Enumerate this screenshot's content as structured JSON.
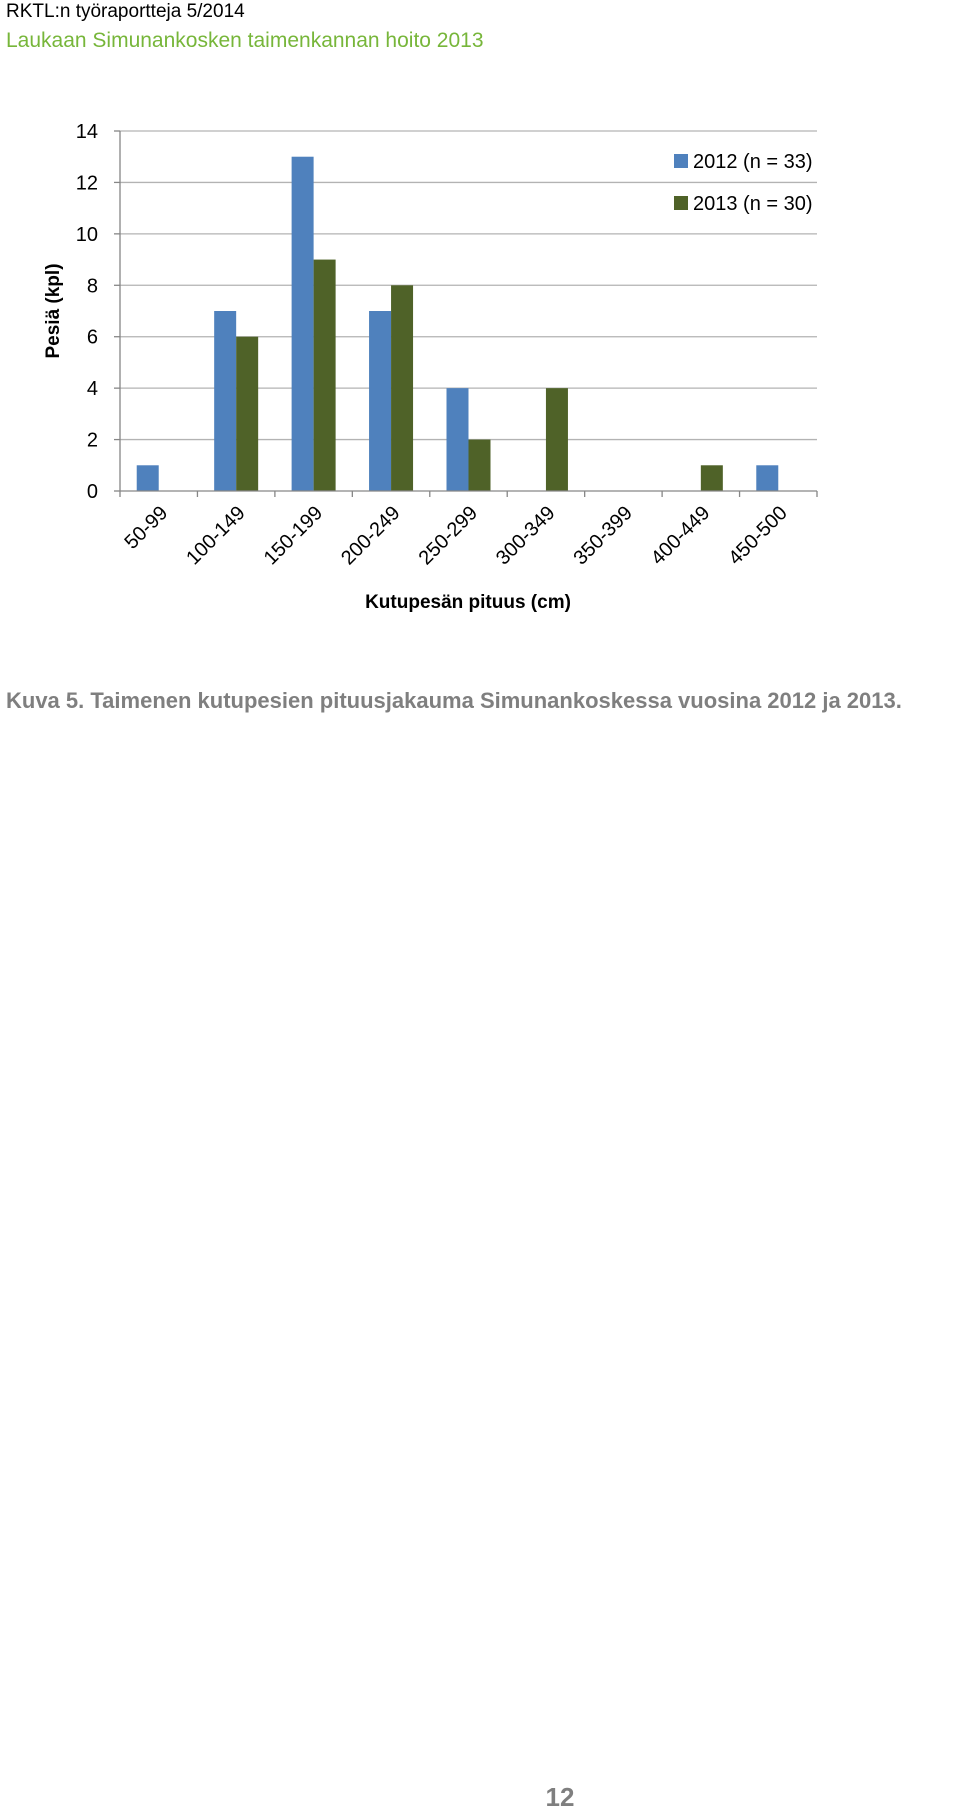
{
  "header": {
    "series": "RKTL:n työraportteja 5/2014",
    "title": "Laukaan Simunankosken taimenkannan hoito 2013"
  },
  "caption": "Kuva 5. Taimenen kutupesien pituusjakauma Simunankoskessa vuosina 2012 ja 2013.",
  "page_number": "12",
  "colors": {
    "title_green": "#77b63a",
    "caption_gray": "#7f7f7f",
    "series_2012": "#4f81bd",
    "series_2013": "#4f6228",
    "gridline": "#b3b3b3",
    "axis": "#868686"
  },
  "chart_data": {
    "type": "bar",
    "categories": [
      "50-99",
      "100-149",
      "150-199",
      "200-249",
      "250-299",
      "300-349",
      "350-399",
      "400-449",
      "450-500"
    ],
    "series": [
      {
        "name": "2012 (n = 33)",
        "values": [
          1,
          7,
          13,
          7,
          4,
          0,
          0,
          0,
          1
        ]
      },
      {
        "name": "2013 (n = 30)",
        "values": [
          0,
          6,
          9,
          8,
          2,
          4,
          0,
          1,
          0
        ]
      }
    ],
    "title": "",
    "xlabel": "Kutupesän pituus (cm)",
    "ylabel": "Pesiä (kpl)",
    "ylim": [
      0,
      14
    ],
    "yticks": [
      0,
      2,
      4,
      6,
      8,
      10,
      12,
      14
    ],
    "grid": true,
    "legend": "top-right"
  }
}
